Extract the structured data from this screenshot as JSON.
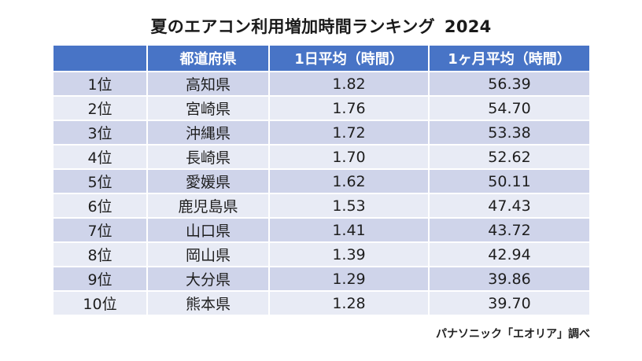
{
  "chart_data": {
    "type": "table",
    "title": "夏のエアコン利用増加時間ランキング",
    "year": "2024",
    "columns": [
      "",
      "都道府県",
      "1日平均（時間）",
      "1ヶ月平均（時間）"
    ],
    "rows": [
      {
        "rank": "1位",
        "prefecture": "高知県",
        "daily_avg": "1.82",
        "monthly_avg": "56.39"
      },
      {
        "rank": "2位",
        "prefecture": "宮崎県",
        "daily_avg": "1.76",
        "monthly_avg": "54.70"
      },
      {
        "rank": "3位",
        "prefecture": "沖縄県",
        "daily_avg": "1.72",
        "monthly_avg": "53.38"
      },
      {
        "rank": "4位",
        "prefecture": "長崎県",
        "daily_avg": "1.70",
        "monthly_avg": "52.62"
      },
      {
        "rank": "5位",
        "prefecture": "愛媛県",
        "daily_avg": "1.62",
        "monthly_avg": "50.11"
      },
      {
        "rank": "6位",
        "prefecture": "鹿児島県",
        "daily_avg": "1.53",
        "monthly_avg": "47.43"
      },
      {
        "rank": "7位",
        "prefecture": "山口県",
        "daily_avg": "1.41",
        "monthly_avg": "43.72"
      },
      {
        "rank": "8位",
        "prefecture": "岡山県",
        "daily_avg": "1.39",
        "monthly_avg": "42.94"
      },
      {
        "rank": "9位",
        "prefecture": "大分県",
        "daily_avg": "1.29",
        "monthly_avg": "39.86"
      },
      {
        "rank": "10位",
        "prefecture": "熊本県",
        "daily_avg": "1.28",
        "monthly_avg": "39.70"
      }
    ],
    "source": "パナソニック「エオリア」調べ"
  },
  "colors": {
    "header_bg": "#4874c6",
    "row_odd": "#cfd4ea",
    "row_even": "#e8ebf5"
  }
}
